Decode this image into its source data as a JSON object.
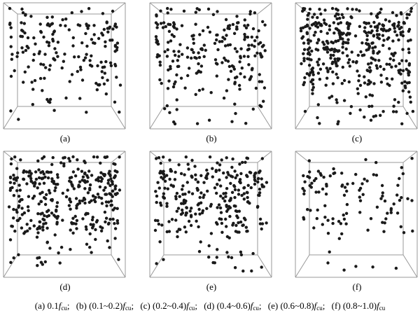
{
  "panels": [
    {
      "label": "(a)",
      "density": 180,
      "seed": 11
    },
    {
      "label": "(b)",
      "density": 230,
      "seed": 23
    },
    {
      "label": "(c)",
      "density": 420,
      "seed": 37
    },
    {
      "label": "(d)",
      "density": 360,
      "seed": 41
    },
    {
      "label": "(e)",
      "density": 300,
      "seed": 53
    },
    {
      "label": "(f)",
      "density": 110,
      "seed": 67
    }
  ],
  "caption": {
    "items": [
      {
        "prefix": "(a) 0.1",
        "f": "f",
        "sub": "cu",
        "sep": ";"
      },
      {
        "prefix": "(b) (0.1~0.2)",
        "f": "f",
        "sub": "cu",
        "sep": ";"
      },
      {
        "prefix": "(c) (0.2~0.4)",
        "f": "f",
        "sub": "cu",
        "sep": ";"
      },
      {
        "prefix": "(d) (0.4~0.6)",
        "f": "f",
        "sub": "cu",
        "sep": ";"
      },
      {
        "prefix": "(e) (0.6~0.8)",
        "f": "f",
        "sub": "cu",
        "sep": ";"
      },
      {
        "prefix": "(f) (0.8~1.0)",
        "f": "f",
        "sub": "cu",
        "sep": ""
      }
    ]
  }
}
